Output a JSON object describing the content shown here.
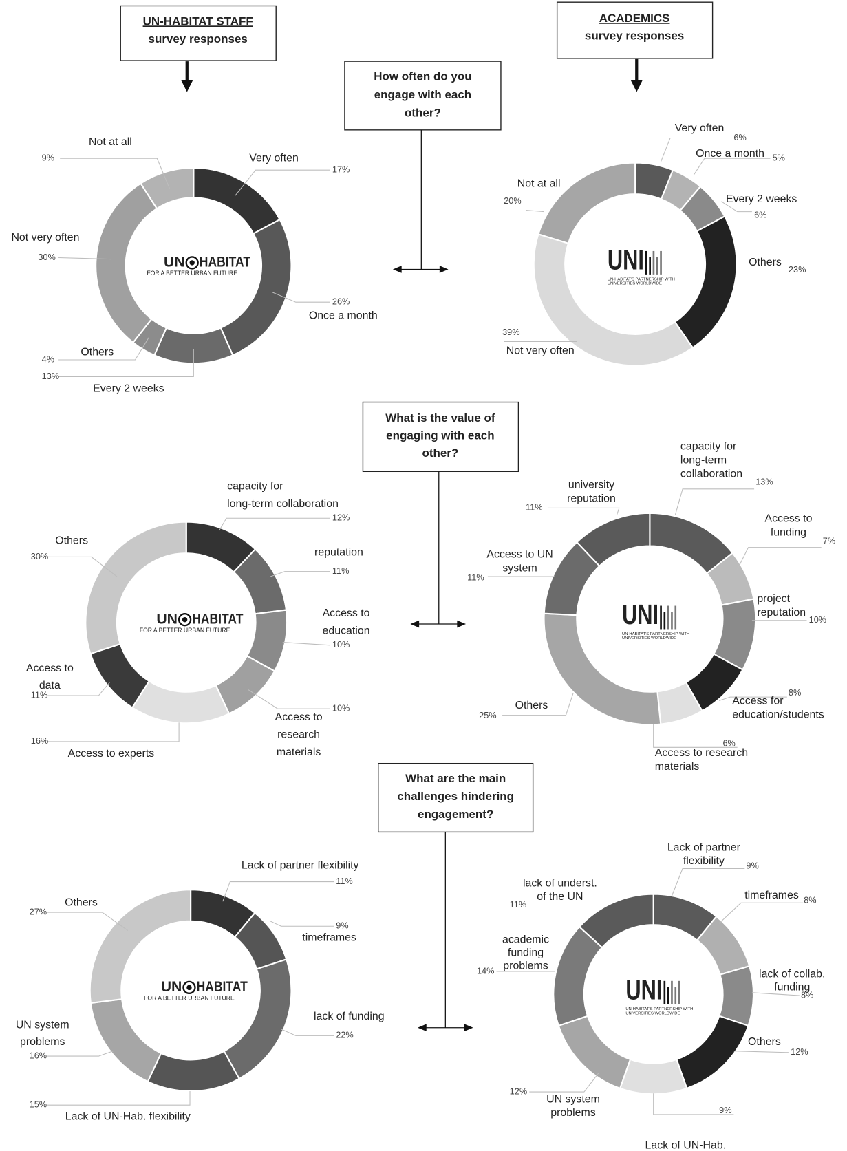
{
  "headers": [
    {
      "title": "UN-HABITAT STAFF",
      "subtitle": "survey responses"
    },
    {
      "title": "ACADEMICS",
      "subtitle": "survey responses"
    }
  ],
  "questions": [
    "How often do you\nengage with each\nother?",
    "What is the value of\nengaging with each\nother?",
    "What are the main\nchallenges hindering\nengagement?"
  ],
  "chart_data": [
    {
      "type": "donut",
      "categories": [
        "Very often",
        "Once a month",
        "Every 2 weeks",
        "Others",
        "Not very often",
        "Not at all"
      ],
      "values": [
        17,
        26,
        13,
        4,
        30,
        9
      ],
      "value_labels": [
        "17%",
        "26%",
        "13%",
        "4%",
        "30%",
        "9%"
      ],
      "colors": [
        "#333333",
        "#585858",
        "#6a6a6a",
        "#8c8c8c",
        "#a0a0a0",
        "#b3b3b3"
      ],
      "logo": {
        "left": "UN",
        "right": "HABITAT",
        "tagline": "FOR A BETTER URBAN FUTURE"
      }
    },
    {
      "type": "donut",
      "categories": [
        "Very often",
        "Once a month",
        "Every 2 weeks",
        "Others",
        "Not very often",
        "Not at all"
      ],
      "values": [
        6,
        5,
        6,
        23,
        39,
        20
      ],
      "value_labels": [
        "6%",
        "5%",
        "6%",
        "23%",
        "39%",
        "20%"
      ],
      "colors": [
        "#595959",
        "#b3b3b3",
        "#8a8a8a",
        "#222222",
        "#dadada",
        "#a6a6a6"
      ],
      "logo": {
        "name": "UNI",
        "tagline": "UN-HABITAT'S PARTNERSHIP WITH\nUNIVERSITIES WORLDWIDE"
      }
    },
    {
      "type": "donut",
      "categories": [
        "capacity for\nlong-term collaboration",
        "reputation",
        "Access to\neducation",
        "Access to\nresearch\nmaterials",
        "Access to experts",
        "Access to\ndata",
        "Others"
      ],
      "values": [
        12,
        11,
        10,
        10,
        16,
        11,
        30
      ],
      "value_labels": [
        "12%",
        "11%",
        "10%",
        "10%",
        "16%",
        "11%",
        "30%"
      ],
      "colors": [
        "#333333",
        "#6b6b6b",
        "#8a8a8a",
        "#a0a0a0",
        "#e0e0e0",
        "#3a3a3a",
        "#c8c8c8"
      ],
      "logo": {
        "left": "UN",
        "right": "HABITAT",
        "tagline": "FOR A BETTER URBAN FUTURE"
      }
    },
    {
      "type": "donut",
      "categories": [
        "capacity for\nlong-term\ncollaboration",
        "Access to\nfunding",
        "project\nreputation",
        "Access for\neducation/students",
        "Access to research\nmaterials",
        "Others",
        "Access to UN\nsystem",
        "university\nreputation"
      ],
      "values": [
        13,
        7,
        10,
        8,
        6,
        25,
        11,
        11
      ],
      "value_labels": [
        "13%",
        "7%",
        "10%",
        "8%",
        "6%",
        "25%",
        "11%",
        "11%"
      ],
      "colors": [
        "#5a5a5a",
        "#bbbbbb",
        "#8a8a8a",
        "#222222",
        "#e0e0e0",
        "#a6a6a6",
        "#6b6b6b",
        "#5a5a5a"
      ],
      "logo": {
        "name": "UNI",
        "tagline": "UN-HABITAT'S PARTNERSHIP WITH\nUNIVERSITIES WORLDWIDE"
      }
    },
    {
      "type": "donut",
      "categories": [
        "Lack of partner flexibility",
        "timeframes",
        "lack of funding",
        "Lack of UN-Hab. flexibility",
        "UN system\nproblems",
        "Others"
      ],
      "values": [
        11,
        9,
        22,
        15,
        16,
        27
      ],
      "value_labels": [
        "11%",
        "9%",
        "22%",
        "15%",
        "16%",
        "27%"
      ],
      "colors": [
        "#333333",
        "#555555",
        "#6b6b6b",
        "#555555",
        "#a6a6a6",
        "#c8c8c8"
      ],
      "logo": {
        "left": "UN",
        "right": "HABITAT",
        "tagline": "FOR A BETTER URBAN FUTURE"
      }
    },
    {
      "type": "donut",
      "categories": [
        "Lack of partner\nflexibility",
        "timeframes",
        "lack of collab.\nfunding",
        "Others",
        "Lack of UN-Hab.\nflexibility",
        "UN system\nproblems",
        "academic\nfunding\nproblems",
        "lack of underst.\nof the UN"
      ],
      "values": [
        9,
        8,
        8,
        12,
        9,
        12,
        14,
        11
      ],
      "value_labels": [
        "9%",
        "8%",
        "8%",
        "12%",
        "9%",
        "12%",
        "14%",
        "11%"
      ],
      "colors": [
        "#5a5a5a",
        "#b0b0b0",
        "#8a8a8a",
        "#222222",
        "#e0e0e0",
        "#a6a6a6",
        "#7a7a7a",
        "#5a5a5a"
      ],
      "logo": {
        "name": "UNI",
        "tagline": "UN-HABITAT'S PARTNERSHIP WITH\nUNIVERSITIES WORLDWIDE"
      }
    }
  ]
}
